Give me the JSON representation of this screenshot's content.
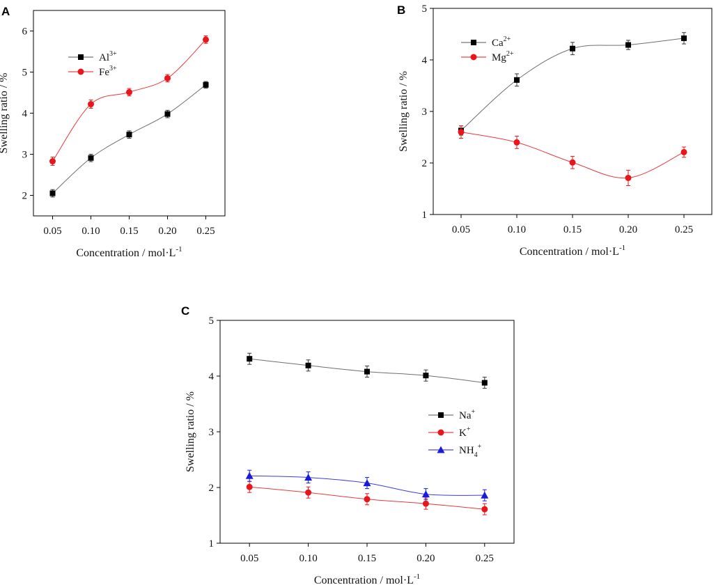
{
  "chart_data": [
    {
      "panel": "A",
      "type": "line",
      "categories": [
        "0.05",
        "0.10",
        "0.15",
        "0.20",
        "0.25"
      ],
      "x": [
        0.05,
        0.1,
        0.15,
        0.2,
        0.25
      ],
      "xlabel": "Concentration / mol·L",
      "xlabel_sup": "-1",
      "ylabel": "Swelling ratio / %",
      "ylim": [
        1.5,
        6.5
      ],
      "yticks": [
        "2",
        "3",
        "4",
        "5",
        "6"
      ],
      "legend_position": "top-left",
      "series": [
        {
          "name": "Al",
          "sup": "3+",
          "color": "#000000",
          "marker": "square",
          "values": [
            2.05,
            2.91,
            3.48,
            3.98,
            4.69
          ],
          "errors": [
            0.09,
            0.09,
            0.09,
            0.09,
            0.08
          ]
        },
        {
          "name": "Fe",
          "sup": "3+",
          "color": "#e8151b",
          "marker": "circle",
          "values": [
            2.83,
            4.22,
            4.51,
            4.85,
            5.79
          ],
          "errors": [
            0.1,
            0.1,
            0.09,
            0.09,
            0.09
          ]
        }
      ]
    },
    {
      "panel": "B",
      "type": "line",
      "categories": [
        "0.05",
        "0.10",
        "0.15",
        "0.20",
        "0.25"
      ],
      "x": [
        0.05,
        0.1,
        0.15,
        0.2,
        0.25
      ],
      "xlabel": "Concentration / mol·L",
      "xlabel_sup": "-1",
      "ylabel": "Swelling ratio / %",
      "ylim": [
        1,
        5
      ],
      "yticks": [
        "1",
        "2",
        "3",
        "4",
        "5"
      ],
      "legend_position": "top-left",
      "series": [
        {
          "name": "Ca",
          "sup": "2+",
          "color": "#000000",
          "marker": "square",
          "values": [
            2.63,
            3.61,
            4.22,
            4.29,
            4.42
          ],
          "errors": [
            0.09,
            0.12,
            0.12,
            0.09,
            0.11
          ]
        },
        {
          "name": "Mg",
          "sup": "2+",
          "color": "#e8151b",
          "marker": "circle",
          "values": [
            2.6,
            2.4,
            2.01,
            1.71,
            2.21
          ],
          "errors": [
            0.12,
            0.12,
            0.12,
            0.15,
            0.1
          ]
        }
      ]
    },
    {
      "panel": "C",
      "type": "line",
      "categories": [
        "0.05",
        "0.10",
        "0.15",
        "0.20",
        "0.25"
      ],
      "x": [
        0.05,
        0.1,
        0.15,
        0.2,
        0.25
      ],
      "xlabel": "Concentration / mol·L",
      "xlabel_sup": "-1",
      "ylabel": "Swelling ratio / %",
      "ylim": [
        1,
        5
      ],
      "yticks": [
        "1",
        "2",
        "3",
        "4",
        "5"
      ],
      "legend_position": "right",
      "series": [
        {
          "name": "Na",
          "sup": "+",
          "color": "#000000",
          "marker": "square",
          "values": [
            4.31,
            4.19,
            4.08,
            4.01,
            3.88
          ],
          "errors": [
            0.1,
            0.1,
            0.1,
            0.1,
            0.1
          ]
        },
        {
          "name": "K",
          "sup": "+",
          "color": "#e8151b",
          "marker": "circle",
          "values": [
            2.01,
            1.91,
            1.79,
            1.71,
            1.61
          ],
          "errors": [
            0.1,
            0.1,
            0.1,
            0.1,
            0.1
          ]
        },
        {
          "name": "NH",
          "sub": "4",
          "sup": "+",
          "color": "#1a1adb",
          "marker": "triangle",
          "values": [
            2.21,
            2.18,
            2.08,
            1.88,
            1.86
          ],
          "errors": [
            0.1,
            0.1,
            0.1,
            0.1,
            0.1
          ]
        }
      ]
    }
  ]
}
